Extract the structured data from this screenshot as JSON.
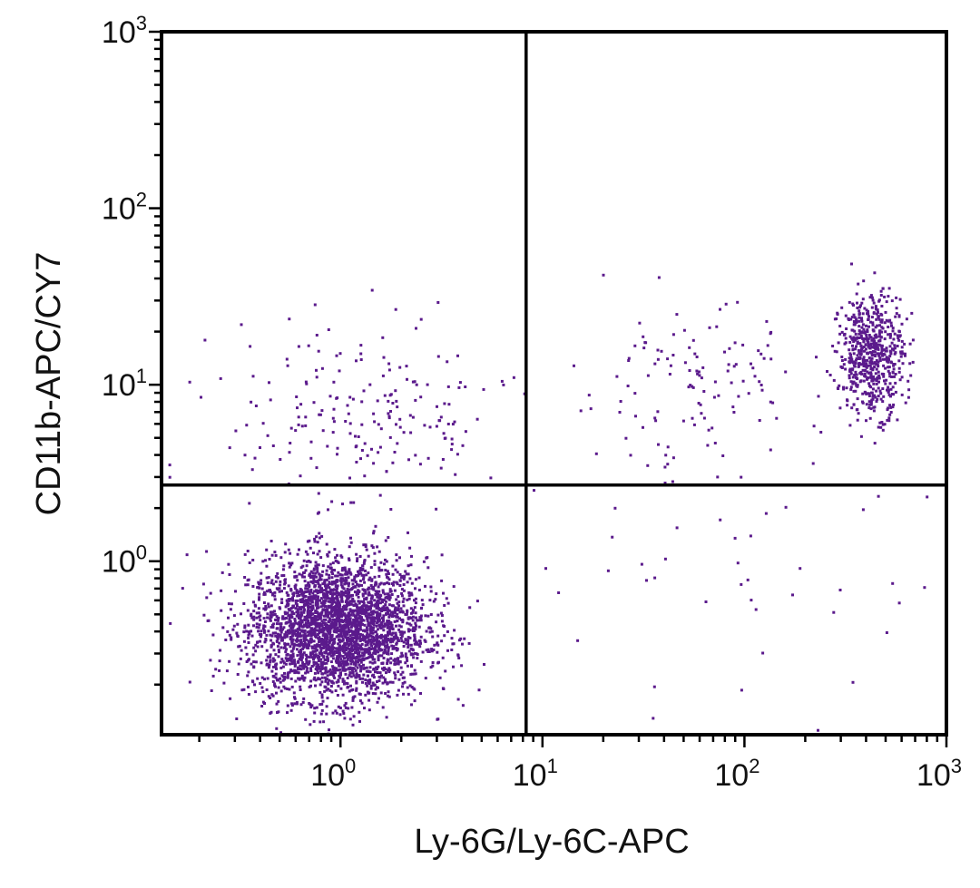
{
  "chart_data": {
    "type": "scatter",
    "title": "",
    "xlabel": "Ly-6G/Ly-6C-APC",
    "ylabel": "CD11b-APC/CY7",
    "xscale": "log",
    "yscale": "log",
    "xlim": [
      0.13,
      1000
    ],
    "ylim": [
      0.104,
      1000
    ],
    "x_ticks": [
      {
        "base": "10",
        "exp": "0",
        "value": 1
      },
      {
        "base": "10",
        "exp": "1",
        "value": 10
      },
      {
        "base": "10",
        "exp": "2",
        "value": 100
      },
      {
        "base": "10",
        "exp": "3",
        "value": 1000
      }
    ],
    "y_ticks": [
      {
        "base": "10",
        "exp": "0",
        "value": 1
      },
      {
        "base": "10",
        "exp": "1",
        "value": 10
      },
      {
        "base": "10",
        "exp": "2",
        "value": 100
      },
      {
        "base": "10",
        "exp": "3",
        "value": 1000
      }
    ],
    "quadrant_gates": {
      "x": 8.3,
      "y": 2.7
    },
    "point_color": "#5b1a8c",
    "populations": [
      {
        "label": "double-negative cluster",
        "center": [
          0.95,
          0.42
        ],
        "spread_log10": [
          0.22,
          0.2
        ],
        "count": 3200
      },
      {
        "label": "scattered CD11b+ Ly-6G- events",
        "center": [
          1.3,
          6.5
        ],
        "spread_log10": [
          0.35,
          0.28
        ],
        "count": 210
      },
      {
        "label": "Ly-6G/Ly-6C-high CD11b+ cluster",
        "center": [
          420,
          15
        ],
        "spread_log10": [
          0.08,
          0.17
        ],
        "count": 620
      },
      {
        "label": "intermediate CD11b+ events",
        "center": [
          55,
          10
        ],
        "spread_log10": [
          0.3,
          0.22
        ],
        "count": 120
      },
      {
        "label": "scattered Ly-6G+ CD11b- events",
        "center": [
          60,
          0.9
        ],
        "spread_log10": [
          0.55,
          0.35
        ],
        "count": 45
      }
    ]
  }
}
